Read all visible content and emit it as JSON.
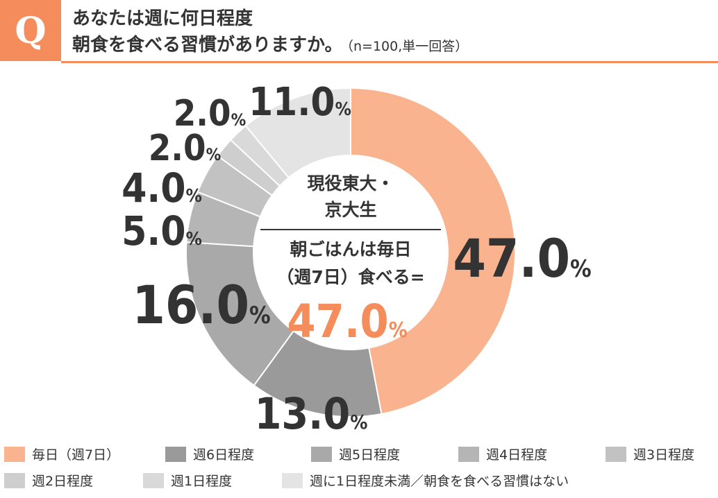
{
  "header": {
    "badge": "Q",
    "line1": "あなたは週に何日程度",
    "line2": "朝食を食べる習慣がありますか。",
    "note": "（n=100,単一回答）"
  },
  "center": {
    "line1": "現役東大・",
    "line2": "京大生",
    "line3": "朝ごはんは毎日",
    "line4": "（週7日）食べる=",
    "value": "47.0",
    "unit": "%"
  },
  "chart_data": {
    "type": "pie",
    "style": "donut",
    "unit": "%",
    "series": [
      {
        "name": "毎日（週7日）",
        "value": 47.0,
        "color": "#f9b38e"
      },
      {
        "name": "週6日程度",
        "value": 13.0,
        "color": "#9a9a9a"
      },
      {
        "name": "週5日程度",
        "value": 16.0,
        "color": "#a9a9a9"
      },
      {
        "name": "週4日程度",
        "value": 5.0,
        "color": "#b5b5b5"
      },
      {
        "name": "週3日程度",
        "value": 4.0,
        "color": "#c2c2c2"
      },
      {
        "name": "週2日程度",
        "value": 2.0,
        "color": "#cecece"
      },
      {
        "name": "週1日程度",
        "value": 2.0,
        "color": "#d9d9d9"
      },
      {
        "name": "週に1日程度未満／朝食を食べる習慣はない",
        "value": 11.0,
        "color": "#e4e4e4"
      }
    ],
    "legend_position": "bottom",
    "accent_color": "#f58c5c"
  }
}
